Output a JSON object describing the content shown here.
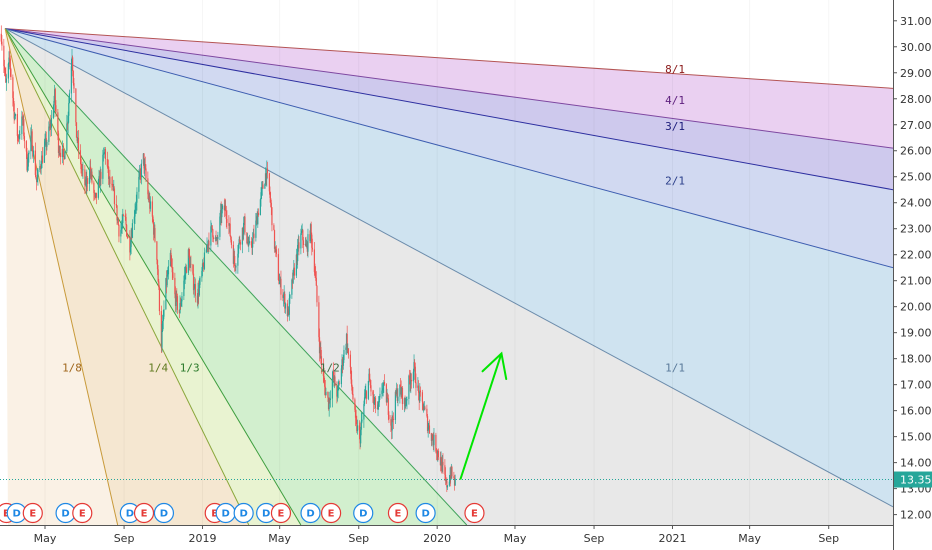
{
  "chart_data": {
    "type": "line",
    "title": "",
    "xlabel": "",
    "ylabel": "",
    "x_range": [
      "2018-02-20",
      "2021-12-10"
    ],
    "ylim": [
      11.6,
      31.8
    ],
    "x_ticks": [
      {
        "date": "2018-05-01",
        "label": "May"
      },
      {
        "date": "2018-09-01",
        "label": "Sep"
      },
      {
        "date": "2019-01-01",
        "label": "2019"
      },
      {
        "date": "2019-05-01",
        "label": "May"
      },
      {
        "date": "2019-09-01",
        "label": "Sep"
      },
      {
        "date": "2020-01-01",
        "label": "2020"
      },
      {
        "date": "2020-05-01",
        "label": "May"
      },
      {
        "date": "2020-09-01",
        "label": "Sep"
      },
      {
        "date": "2021-01-01",
        "label": "2021"
      },
      {
        "date": "2021-05-01",
        "label": "May"
      },
      {
        "date": "2021-09-01",
        "label": "Sep"
      }
    ],
    "y_ticks": [
      "12.00",
      "13.00",
      "14.00",
      "15.00",
      "16.00",
      "17.00",
      "18.00",
      "19.00",
      "20.00",
      "21.00",
      "22.00",
      "23.00",
      "24.00",
      "25.00",
      "26.00",
      "27.00",
      "28.00",
      "29.00",
      "30.00",
      "31.00"
    ],
    "last_price": {
      "value": 13.35,
      "label": "13.35",
      "color": "#26a69a"
    },
    "candle_colors": {
      "up": "#26a69a",
      "down": "#ef5350"
    },
    "price_series": {
      "name": "",
      "points": [
        [
          "2018-02-22",
          30.5
        ],
        [
          "2018-03-01",
          28.5
        ],
        [
          "2018-03-07",
          29.5
        ],
        [
          "2018-03-14",
          27.5
        ],
        [
          "2018-03-20",
          26.5
        ],
        [
          "2018-03-27",
          27.2
        ],
        [
          "2018-04-03",
          25.5
        ],
        [
          "2018-04-10",
          26.5
        ],
        [
          "2018-04-18",
          24.8
        ],
        [
          "2018-04-25",
          25.6
        ],
        [
          "2018-05-03",
          26.3
        ],
        [
          "2018-05-10",
          27.0
        ],
        [
          "2018-05-16",
          28.1
        ],
        [
          "2018-05-22",
          26.2
        ],
        [
          "2018-05-30",
          25.7
        ],
        [
          "2018-06-06",
          27.5
        ],
        [
          "2018-06-12",
          29.8
        ],
        [
          "2018-06-18",
          26.8
        ],
        [
          "2018-06-25",
          25.5
        ],
        [
          "2018-07-03",
          24.6
        ],
        [
          "2018-07-10",
          25.3
        ],
        [
          "2018-07-18",
          24.0
        ],
        [
          "2018-07-26",
          25.0
        ],
        [
          "2018-08-02",
          26.0
        ],
        [
          "2018-08-09",
          24.8
        ],
        [
          "2018-08-17",
          24.2
        ],
        [
          "2018-08-25",
          22.8
        ],
        [
          "2018-09-02",
          23.5
        ],
        [
          "2018-09-09",
          22.2
        ],
        [
          "2018-09-16",
          23.5
        ],
        [
          "2018-09-24",
          24.8
        ],
        [
          "2018-10-01",
          25.7
        ],
        [
          "2018-10-08",
          24.3
        ],
        [
          "2018-10-15",
          23.4
        ],
        [
          "2018-10-22",
          22.0
        ],
        [
          "2018-10-29",
          18.6
        ],
        [
          "2018-11-05",
          20.8
        ],
        [
          "2018-11-12",
          21.8
        ],
        [
          "2018-11-19",
          20.4
        ],
        [
          "2018-11-26",
          19.8
        ],
        [
          "2018-12-03",
          21.0
        ],
        [
          "2018-12-10",
          22.0
        ],
        [
          "2018-12-17",
          21.0
        ],
        [
          "2018-12-24",
          20.4
        ],
        [
          "2019-01-02",
          21.5
        ],
        [
          "2019-01-09",
          22.5
        ],
        [
          "2019-01-16",
          23.0
        ],
        [
          "2019-01-23",
          22.4
        ],
        [
          "2019-01-30",
          23.6
        ],
        [
          "2019-02-06",
          23.8
        ],
        [
          "2019-02-13",
          22.8
        ],
        [
          "2019-02-20",
          21.6
        ],
        [
          "2019-02-28",
          22.6
        ],
        [
          "2019-03-07",
          23.2
        ],
        [
          "2019-03-14",
          22.2
        ],
        [
          "2019-03-21",
          22.6
        ],
        [
          "2019-03-28",
          23.6
        ],
        [
          "2019-04-04",
          24.5
        ],
        [
          "2019-04-10",
          25.2
        ],
        [
          "2019-04-16",
          24.2
        ],
        [
          "2019-04-23",
          22.4
        ],
        [
          "2019-04-30",
          21.0
        ],
        [
          "2019-05-07",
          20.4
        ],
        [
          "2019-05-14",
          19.7
        ],
        [
          "2019-05-21",
          21.0
        ],
        [
          "2019-05-28",
          22.0
        ],
        [
          "2019-06-04",
          22.8
        ],
        [
          "2019-06-11",
          22.2
        ],
        [
          "2019-06-18",
          22.9
        ],
        [
          "2019-06-25",
          21.4
        ],
        [
          "2019-07-02",
          18.5
        ],
        [
          "2019-07-09",
          17.0
        ],
        [
          "2019-07-16",
          16.3
        ],
        [
          "2019-07-23",
          17.3
        ],
        [
          "2019-07-30",
          16.6
        ],
        [
          "2019-08-06",
          17.8
        ],
        [
          "2019-08-13",
          18.8
        ],
        [
          "2019-08-20",
          17.2
        ],
        [
          "2019-08-27",
          15.5
        ],
        [
          "2019-09-03",
          15.0
        ],
        [
          "2019-09-10",
          16.4
        ],
        [
          "2019-09-17",
          17.2
        ],
        [
          "2019-09-24",
          16.3
        ],
        [
          "2019-10-01",
          16.0
        ],
        [
          "2019-10-08",
          17.0
        ],
        [
          "2019-10-15",
          16.4
        ],
        [
          "2019-10-22",
          15.4
        ],
        [
          "2019-10-29",
          16.6
        ],
        [
          "2019-11-05",
          16.8
        ],
        [
          "2019-11-12",
          16.2
        ],
        [
          "2019-11-19",
          17.2
        ],
        [
          "2019-11-26",
          17.6
        ],
        [
          "2019-12-03",
          16.6
        ],
        [
          "2019-12-10",
          16.2
        ],
        [
          "2019-12-17",
          15.5
        ],
        [
          "2019-12-24",
          15.0
        ],
        [
          "2020-01-01",
          14.5
        ],
        [
          "2020-01-08",
          13.9
        ],
        [
          "2020-01-15",
          13.1
        ],
        [
          "2020-01-22",
          13.6
        ],
        [
          "2020-01-29",
          13.2
        ]
      ]
    },
    "fan_lines": [
      {
        "label": "8/1",
        "end": [
          "2021-12-10",
          28.4
        ],
        "label_at": [
          "2021-01-05",
          29.0
        ],
        "line_color": "#b45454",
        "fill": "rgba(200,90,80,0.30)",
        "text_color": "#8b1a1a"
      },
      {
        "label": "4/1",
        "end": [
          "2021-12-10",
          26.1
        ],
        "label_at": [
          "2021-01-05",
          27.8
        ],
        "line_color": "#7e47a0",
        "fill": "rgba(190,110,210,0.32)",
        "text_color": "#5d1f7d"
      },
      {
        "label": "3/1",
        "end": [
          "2021-12-10",
          24.5
        ],
        "label_at": [
          "2021-01-05",
          26.8
        ],
        "line_color": "#2d2fa0",
        "fill": "rgba(120,105,205,0.36)",
        "text_color": "#1a1a7a"
      },
      {
        "label": "2/1",
        "end": [
          "2021-12-10",
          21.5
        ],
        "label_at": [
          "2021-01-05",
          24.7
        ],
        "line_color": "#3d5db0",
        "fill": "rgba(140,160,220,0.40)",
        "text_color": "#2b3f8a"
      },
      {
        "label": "1/1",
        "end": [
          "2021-12-10",
          12.3
        ],
        "label_at": [
          "2021-01-05",
          17.5
        ],
        "line_color": "#6c8cab",
        "fill": "rgba(160,200,225,0.50)",
        "text_color": "#5a7a9a"
      },
      {
        "label": "1/2",
        "end": [
          "2020-02-16",
          11.6
        ],
        "label_at": [
          "2019-07-18",
          17.5
        ],
        "line_color": "#3fa35a",
        "fill": "rgba(180,180,180,0.30)",
        "text_color": "#3e6a3e"
      },
      {
        "label": "1/3",
        "end": [
          "2019-06-03",
          11.6
        ],
        "label_at": [
          "2018-12-12",
          17.5
        ],
        "line_color": "#3e9e3e",
        "fill": "rgba(130,210,120,0.36)",
        "text_color": "#2b7a2b"
      },
      {
        "label": "1/4",
        "end": [
          "2019-03-14",
          11.6
        ],
        "label_at": [
          "2018-10-24",
          17.5
        ],
        "line_color": "#8aa63a",
        "fill": "rgba(200,225,140,0.40)",
        "text_color": "#5f7a1f"
      },
      {
        "label": "1/8",
        "end": [
          "2018-08-22",
          11.6
        ],
        "label_at": [
          "2018-06-12",
          17.5
        ],
        "line_color": "#c89a3a",
        "fill": "rgba(230,195,140,0.40)",
        "text_color": "#a0661c"
      }
    ],
    "fan_origin": [
      "2018-02-28",
      30.7
    ],
    "arrow": {
      "from": [
        "2020-02-06",
        13.35
      ],
      "to": [
        "2020-04-10",
        18.2
      ],
      "color": "#00e600"
    },
    "events": [
      {
        "letter": "E",
        "date": "2018-03-02",
        "type": "earnings"
      },
      {
        "letter": "D",
        "date": "2018-03-18",
        "type": "dividend"
      },
      {
        "letter": "E",
        "date": "2018-04-12",
        "type": "earnings"
      },
      {
        "letter": "D",
        "date": "2018-06-02",
        "type": "dividend"
      },
      {
        "letter": "E",
        "date": "2018-06-28",
        "type": "earnings"
      },
      {
        "letter": "D",
        "date": "2018-09-10",
        "type": "dividend"
      },
      {
        "letter": "E",
        "date": "2018-10-02",
        "type": "earnings"
      },
      {
        "letter": "D",
        "date": "2018-11-02",
        "type": "dividend"
      },
      {
        "letter": "E",
        "date": "2019-01-20",
        "type": "earnings"
      },
      {
        "letter": "D",
        "date": "2019-02-06",
        "type": "dividend"
      },
      {
        "letter": "D",
        "date": "2019-03-06",
        "type": "dividend"
      },
      {
        "letter": "D",
        "date": "2019-04-10",
        "type": "dividend"
      },
      {
        "letter": "E",
        "date": "2019-05-03",
        "type": "earnings"
      },
      {
        "letter": "D",
        "date": "2019-06-18",
        "type": "dividend"
      },
      {
        "letter": "E",
        "date": "2019-07-20",
        "type": "earnings"
      },
      {
        "letter": "D",
        "date": "2019-09-08",
        "type": "dividend"
      },
      {
        "letter": "E",
        "date": "2019-11-01",
        "type": "earnings"
      },
      {
        "letter": "D",
        "date": "2019-12-14",
        "type": "dividend"
      },
      {
        "letter": "E",
        "date": "2020-02-28",
        "type": "earnings"
      }
    ]
  }
}
